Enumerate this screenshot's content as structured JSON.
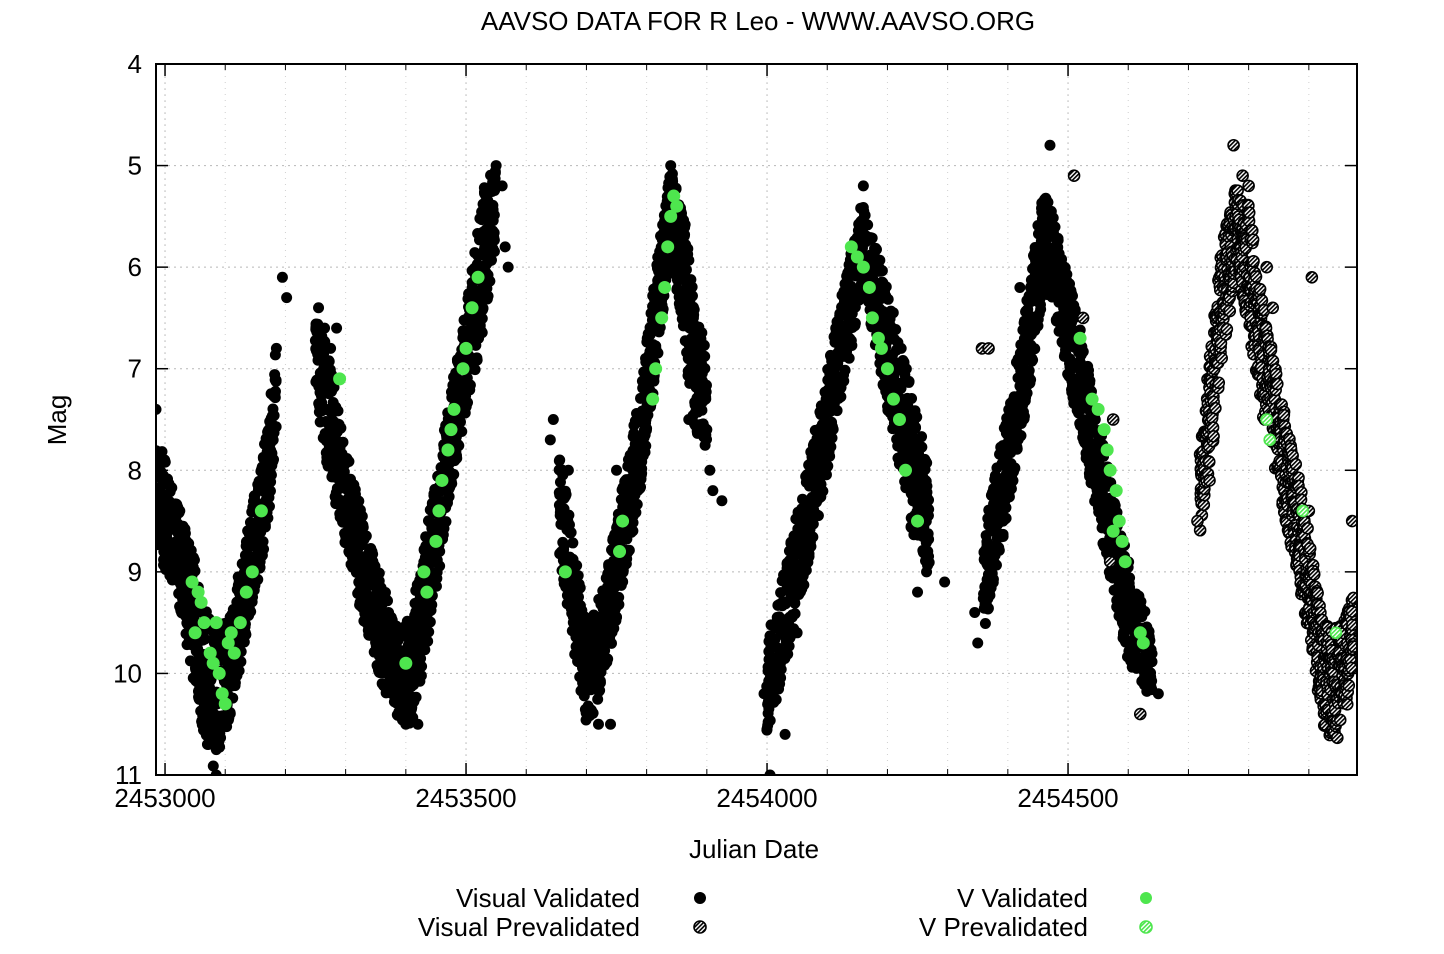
{
  "chart_data": {
    "type": "scatter",
    "title": "AAVSO DATA FOR R Leo - WWW.AAVSO.ORG",
    "xlabel": "Julian Date",
    "ylabel": "Mag",
    "xlim": [
      2452985,
      2454980
    ],
    "ylim": [
      4,
      11
    ],
    "y_inverted": true,
    "grid": true,
    "x_ticks": [
      2453000,
      2453500,
      2454000,
      2454500
    ],
    "x_tick_labels": [
      "2453000",
      "2453500",
      "2454000",
      "2454500"
    ],
    "x_minor_step": 100,
    "y_ticks": [
      4,
      5,
      6,
      7,
      8,
      9,
      10,
      11
    ],
    "y_tick_labels": [
      "4",
      "5",
      "6",
      "7",
      "8",
      "9",
      "10",
      "11"
    ],
    "legend_position": "bottom",
    "colors": {
      "black": "#000000",
      "green": "#4ee64e"
    },
    "series": [
      {
        "name": "Visual Validated",
        "marker": "filled-circle",
        "color": "#000000",
        "envelope": [
          [
            2452985,
            7.6,
            8.8
          ],
          [
            2453020,
            8.3,
            9.2
          ],
          [
            2453050,
            8.9,
            10.2
          ],
          [
            2453080,
            9.6,
            11.0
          ],
          [
            2453110,
            9.4,
            10.4
          ],
          [
            2453130,
            8.8,
            9.8
          ],
          [
            2453150,
            8.2,
            9.2
          ],
          [
            2453170,
            7.6,
            8.6
          ],
          [
            2453185,
            6.8,
            7.6
          ],
          [
            2453250,
            6.5,
            7.2
          ],
          [
            2453270,
            6.8,
            8.0
          ],
          [
            2453300,
            7.8,
            8.8
          ],
          [
            2453330,
            8.5,
            9.5
          ],
          [
            2453360,
            9.1,
            10.1
          ],
          [
            2453390,
            9.6,
            10.5
          ],
          [
            2453410,
            9.4,
            10.5
          ],
          [
            2453440,
            8.4,
            9.6
          ],
          [
            2453470,
            7.4,
            8.4
          ],
          [
            2453500,
            6.4,
            7.4
          ],
          [
            2453530,
            5.2,
            6.6
          ],
          [
            2453550,
            5.0,
            5.8
          ],
          [
            2453655,
            7.8,
            8.8
          ],
          [
            2453680,
            8.8,
            9.8
          ],
          [
            2453700,
            9.5,
            10.5
          ],
          [
            2453720,
            9.3,
            10.3
          ],
          [
            2453750,
            8.5,
            9.5
          ],
          [
            2453790,
            7.2,
            8.2
          ],
          [
            2453820,
            5.8,
            6.8
          ],
          [
            2453840,
            5.0,
            5.8
          ],
          [
            2453860,
            5.4,
            6.6
          ],
          [
            2453880,
            6.4,
            7.6
          ],
          [
            2453900,
            6.8,
            7.8
          ],
          [
            2454000,
            9.7,
            10.6
          ],
          [
            2454040,
            8.7,
            9.7
          ],
          [
            2454080,
            7.6,
            8.6
          ],
          [
            2454120,
            6.4,
            7.4
          ],
          [
            2454160,
            5.3,
            6.2
          ],
          [
            2454200,
            6.2,
            7.4
          ],
          [
            2454240,
            7.2,
            8.6
          ],
          [
            2454270,
            8.0,
            9.0
          ],
          [
            2454360,
            8.6,
            9.6
          ],
          [
            2454400,
            7.4,
            8.4
          ],
          [
            2454430,
            6.4,
            7.4
          ],
          [
            2454460,
            5.2,
            6.2
          ],
          [
            2454480,
            5.6,
            6.6
          ],
          [
            2454520,
            6.6,
            7.6
          ],
          [
            2454560,
            7.8,
            8.8
          ],
          [
            2454600,
            8.9,
            9.9
          ],
          [
            2454640,
            9.6,
            10.3
          ]
        ],
        "points": [
          [
            2452985,
            7.4
          ],
          [
            2453000,
            8.4
          ],
          [
            2453060,
            10.1
          ],
          [
            2453085,
            11.0
          ],
          [
            2453175,
            7.6
          ],
          [
            2453185,
            6.8
          ],
          [
            2453195,
            6.1
          ],
          [
            2453202,
            6.3
          ],
          [
            2453255,
            6.4
          ],
          [
            2453265,
            6.6
          ],
          [
            2453275,
            6.8
          ],
          [
            2453285,
            6.6
          ],
          [
            2453400,
            10.5
          ],
          [
            2453420,
            10.5
          ],
          [
            2453550,
            5.0
          ],
          [
            2453560,
            5.2
          ],
          [
            2453565,
            5.8
          ],
          [
            2453570,
            6.0
          ],
          [
            2453640,
            7.7
          ],
          [
            2453645,
            7.5
          ],
          [
            2453670,
            8.0
          ],
          [
            2453720,
            10.5
          ],
          [
            2453740,
            10.5
          ],
          [
            2453750,
            8.0
          ],
          [
            2453840,
            5.0
          ],
          [
            2453870,
            7.5
          ],
          [
            2453900,
            7.6
          ],
          [
            2453905,
            8.0
          ],
          [
            2453910,
            8.2
          ],
          [
            2453925,
            8.3
          ],
          [
            2453995,
            10.2
          ],
          [
            2454005,
            11.0
          ],
          [
            2454030,
            10.6
          ],
          [
            2454050,
            9.6
          ],
          [
            2454160,
            5.2
          ],
          [
            2454250,
            9.2
          ],
          [
            2454265,
            9.0
          ],
          [
            2454295,
            9.1
          ],
          [
            2454345,
            9.4
          ],
          [
            2454350,
            9.7
          ],
          [
            2454420,
            6.2
          ],
          [
            2454470,
            4.8
          ],
          [
            2454510,
            5.1
          ],
          [
            2454570,
            8.9
          ],
          [
            2454620,
            10.4
          ],
          [
            2454650,
            10.2
          ]
        ]
      },
      {
        "name": "Visual Prevalidated",
        "marker": "hatched-circle",
        "color": "#000000",
        "envelope": [
          [
            2454720,
            7.8,
            8.6
          ],
          [
            2454740,
            6.6,
            7.8
          ],
          [
            2454760,
            5.6,
            6.8
          ],
          [
            2454780,
            5.2,
            6.0
          ],
          [
            2454800,
            5.4,
            6.6
          ],
          [
            2454820,
            6.2,
            7.4
          ],
          [
            2454850,
            7.2,
            8.2
          ],
          [
            2454880,
            8.0,
            9.0
          ],
          [
            2454900,
            8.6,
            9.6
          ],
          [
            2454920,
            9.4,
            10.4
          ],
          [
            2454940,
            9.6,
            10.8
          ],
          [
            2454960,
            9.4,
            10.4
          ],
          [
            2454975,
            9.2,
            10.0
          ]
        ],
        "points": [
          [
            2454357,
            6.8
          ],
          [
            2454368,
            6.8
          ],
          [
            2454510,
            5.1
          ],
          [
            2454525,
            6.5
          ],
          [
            2454570,
            8.9
          ],
          [
            2454575,
            7.5
          ],
          [
            2454620,
            10.4
          ],
          [
            2454715,
            8.5
          ],
          [
            2454735,
            8.1
          ],
          [
            2454775,
            4.8
          ],
          [
            2454790,
            5.1
          ],
          [
            2454800,
            5.2
          ],
          [
            2454830,
            6.0
          ],
          [
            2454840,
            6.4
          ],
          [
            2454900,
            8.4
          ],
          [
            2454905,
            6.1
          ],
          [
            2454972,
            8.5
          ]
        ]
      },
      {
        "name": "V Validated",
        "marker": "filled-circle",
        "color": "#4ee64e",
        "points": [
          [
            2453045,
            9.1
          ],
          [
            2453055,
            9.2
          ],
          [
            2453060,
            9.3
          ],
          [
            2453050,
            9.6
          ],
          [
            2453065,
            9.5
          ],
          [
            2453075,
            9.8
          ],
          [
            2453080,
            9.9
          ],
          [
            2453090,
            10.0
          ],
          [
            2453095,
            10.2
          ],
          [
            2453100,
            10.3
          ],
          [
            2453105,
            9.7
          ],
          [
            2453115,
            9.8
          ],
          [
            2453125,
            9.5
          ],
          [
            2453135,
            9.2
          ],
          [
            2453145,
            9.0
          ],
          [
            2453160,
            8.4
          ],
          [
            2453110,
            9.6
          ],
          [
            2453085,
            9.5
          ],
          [
            2453290,
            7.1
          ],
          [
            2453400,
            9.9
          ],
          [
            2453435,
            9.2
          ],
          [
            2453430,
            9.0
          ],
          [
            2453450,
            8.7
          ],
          [
            2453455,
            8.4
          ],
          [
            2453460,
            8.1
          ],
          [
            2453470,
            7.8
          ],
          [
            2453475,
            7.6
          ],
          [
            2453480,
            7.4
          ],
          [
            2453495,
            7.0
          ],
          [
            2453500,
            6.8
          ],
          [
            2453510,
            6.4
          ],
          [
            2453520,
            6.1
          ],
          [
            2453665,
            9.0
          ],
          [
            2453760,
            8.5
          ],
          [
            2453755,
            8.8
          ],
          [
            2453810,
            7.3
          ],
          [
            2453815,
            7.0
          ],
          [
            2453825,
            6.5
          ],
          [
            2453830,
            6.2
          ],
          [
            2453835,
            5.8
          ],
          [
            2453840,
            5.5
          ],
          [
            2453845,
            5.3
          ],
          [
            2453850,
            5.4
          ],
          [
            2454140,
            5.8
          ],
          [
            2454150,
            5.9
          ],
          [
            2454160,
            6.0
          ],
          [
            2454170,
            6.2
          ],
          [
            2454175,
            6.5
          ],
          [
            2454185,
            6.7
          ],
          [
            2454190,
            6.8
          ],
          [
            2454200,
            7.0
          ],
          [
            2454210,
            7.3
          ],
          [
            2454220,
            7.5
          ],
          [
            2454230,
            8.0
          ],
          [
            2454250,
            8.5
          ],
          [
            2454520,
            6.7
          ],
          [
            2454540,
            7.3
          ],
          [
            2454550,
            7.4
          ],
          [
            2454560,
            7.6
          ],
          [
            2454565,
            7.8
          ],
          [
            2454570,
            8.0
          ],
          [
            2454580,
            8.2
          ],
          [
            2454585,
            8.5
          ],
          [
            2454590,
            8.7
          ],
          [
            2454595,
            8.9
          ],
          [
            2454575,
            8.6
          ],
          [
            2454620,
            9.6
          ],
          [
            2454625,
            9.7
          ]
        ]
      },
      {
        "name": "V Prevalidated",
        "marker": "hatched-circle",
        "color": "#4ee64e",
        "points": [
          [
            2454830,
            7.5
          ],
          [
            2454835,
            7.7
          ],
          [
            2454890,
            8.4
          ],
          [
            2454945,
            9.6
          ]
        ]
      }
    ]
  }
}
